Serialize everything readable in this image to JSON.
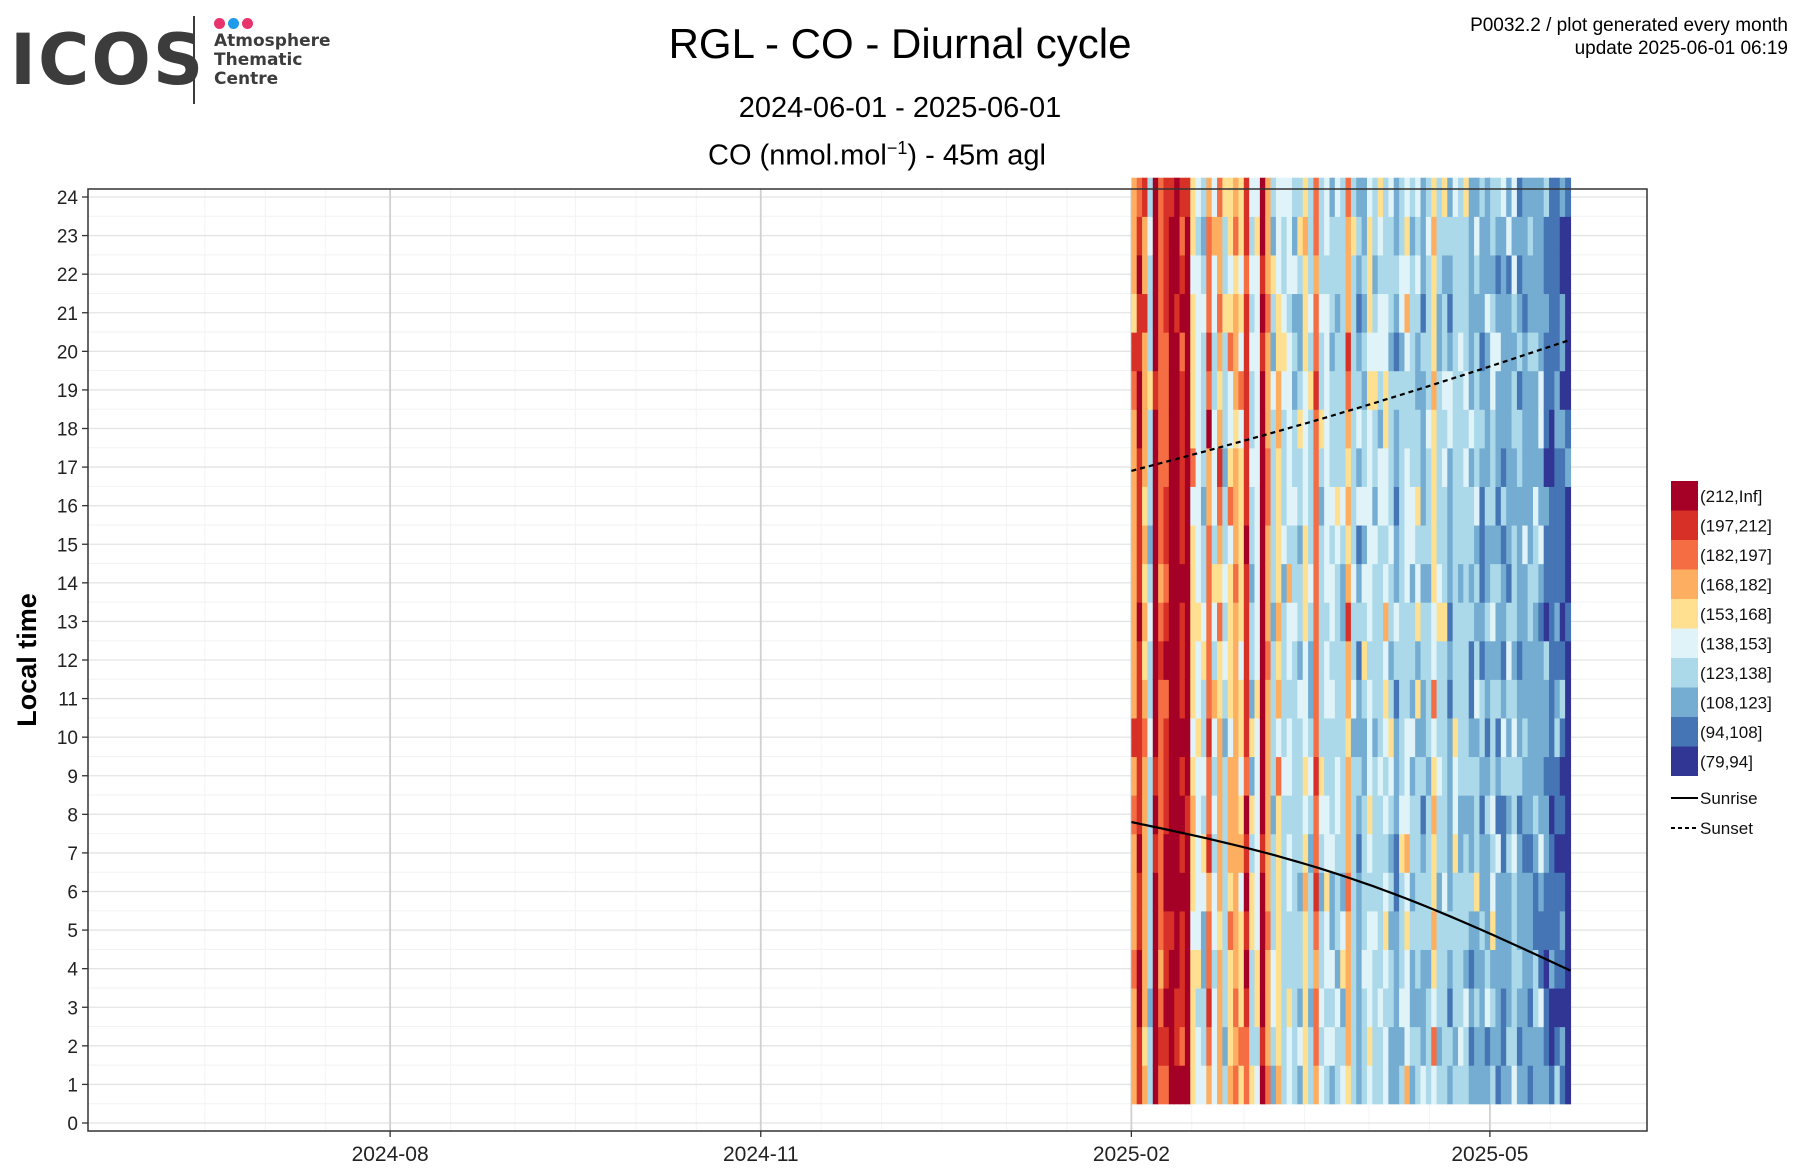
{
  "logo": {
    "word": "ICOS",
    "lines": [
      "Atmosphere",
      "Thematic",
      "Centre"
    ],
    "dot_colors": [
      "#e8336d",
      "#1e9be9",
      "#e8336d"
    ]
  },
  "header": {
    "title": "RGL - CO - Diurnal cycle",
    "period": "2024-06-01 - 2025-06-01",
    "unit_prefix": "CO (nmol.mol",
    "unit_exp": "−1",
    "unit_suffix": ") - 45m agl",
    "meta_line1": "P0032.2 / plot generated every month",
    "meta_line2": "update  2025-06-01 06:19"
  },
  "chart_data": {
    "type": "heatmap",
    "title": "RGL - CO - Diurnal cycle",
    "subtitle": "2024-06-01 - 2025-06-01",
    "value_label": "CO (nmol.mol-1) - 45m agl",
    "xlabel": "",
    "ylabel": "Local time",
    "x_range": [
      "2024-06-01",
      "2025-06-01"
    ],
    "x_ticks": [
      {
        "date": "2024-08-01",
        "label": "2024-08"
      },
      {
        "date": "2024-11-01",
        "label": "2024-11"
      },
      {
        "date": "2025-02-01",
        "label": "2025-02"
      },
      {
        "date": "2025-05-01",
        "label": "2025-05"
      }
    ],
    "y_ticks": [
      0,
      1,
      2,
      3,
      4,
      5,
      6,
      7,
      8,
      9,
      10,
      11,
      12,
      13,
      14,
      15,
      16,
      17,
      18,
      19,
      20,
      21,
      22,
      23,
      24
    ],
    "ylim": [
      0,
      24
    ],
    "grid": true,
    "data_start": "2025-02-01",
    "data_end": "2025-05-21",
    "column_bins": [
      "(168,182]",
      "(197,212]",
      "(168,182]",
      "(123,138]",
      "(212,Inf]",
      "(182,197]",
      "(197,212]",
      "(212,Inf]",
      "(212,Inf]",
      "(197,212]",
      "(212,Inf]",
      "(153,168]",
      "(138,153]",
      "(123,138]",
      "(182,197]",
      "(138,153]",
      "(168,182]",
      "(123,138]",
      "(153,168]",
      "(168,182]",
      "(153,168]",
      "(197,212]",
      "(123,138]",
      "(138,153]",
      "(212,Inf]",
      "(168,182]",
      "(123,138]",
      "(153,168]",
      "(123,138]",
      "(138,153]",
      "(123,138]",
      "(123,138]",
      "(153,168]",
      "(123,138]",
      "(182,197]",
      "(123,138]",
      "(138,153]",
      "(123,138]",
      "(123,138]",
      "(123,138]",
      "(168,182]",
      "(123,138]",
      "(108,123]",
      "(123,138]",
      "(138,153]",
      "(123,138]",
      "(123,138]",
      "(138,153]",
      "(123,138]",
      "(108,123]",
      "(123,138]",
      "(138,153]",
      "(123,138]",
      "(123,138]",
      "(108,123]",
      "(123,138]",
      "(153,168]",
      "(123,138]",
      "(123,138]",
      "(108,123]",
      "(123,138]",
      "(123,138]",
      "(123,138]",
      "(108,123]",
      "(123,138]",
      "(108,123]",
      "(108,123]",
      "(123,138]",
      "(108,123]",
      "(108,123]",
      "(108,123]",
      "(123,138]",
      "(108,123]",
      "(108,123]",
      "(108,123]",
      "(108,123]",
      "(108,123]",
      "(94,108]",
      "(94,108]",
      "(94,108]",
      "(94,108]",
      "(79,94]"
    ],
    "sunrise": [
      {
        "date": "2025-02-01",
        "hour": 7.8
      },
      {
        "date": "2025-05-21",
        "hour": 3.95
      }
    ],
    "sunset": [
      {
        "date": "2025-02-01",
        "hour": 16.9
      },
      {
        "date": "2025-05-21",
        "hour": 20.3
      }
    ],
    "legend": {
      "position": "right",
      "bins": [
        {
          "label": "(212,Inf]",
          "color": "#a50026"
        },
        {
          "label": "(197,212]",
          "color": "#d73027"
        },
        {
          "label": "(182,197]",
          "color": "#f46d43"
        },
        {
          "label": "(168,182]",
          "color": "#fdae61"
        },
        {
          "label": "(153,168]",
          "color": "#fee090"
        },
        {
          "label": "(138,153]",
          "color": "#e0f3f8"
        },
        {
          "label": "(123,138]",
          "color": "#abd9e9"
        },
        {
          "label": "(108,123]",
          "color": "#74add1"
        },
        {
          "label": "(94,108]",
          "color": "#4575b4"
        },
        {
          "label": "(79,94]",
          "color": "#313695"
        }
      ],
      "lines": [
        {
          "label": "Sunrise",
          "style": "solid"
        },
        {
          "label": "Sunset",
          "style": "dashed"
        }
      ]
    }
  }
}
